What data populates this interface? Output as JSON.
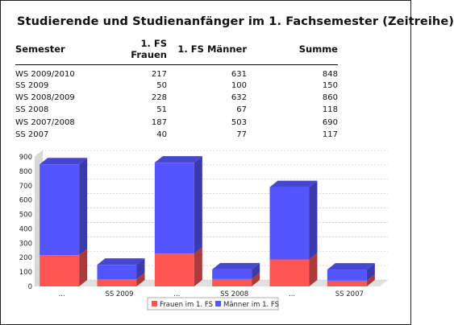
{
  "title": "Studierende und Studienanfänger im 1. Fachsemester (Zeitreihe)",
  "table": {
    "headers": [
      "Semester",
      "1. FS Frauen",
      "1. FS Männer",
      "Summe"
    ],
    "rows": [
      [
        "WS 2009/2010",
        "217",
        "631",
        "848"
      ],
      [
        "SS 2009",
        "50",
        "100",
        "150"
      ],
      [
        "WS 2008/2009",
        "228",
        "632",
        "860"
      ],
      [
        "SS 2008",
        "51",
        "67",
        "118"
      ],
      [
        "WS 2007/2008",
        "187",
        "503",
        "690"
      ],
      [
        "SS 2007",
        "40",
        "77",
        "117"
      ]
    ]
  },
  "chart_data": {
    "type": "bar",
    "stacked": true,
    "categories": [
      "...",
      "SS 2009",
      "...",
      "SS 2008",
      "...",
      "SS 2007"
    ],
    "series": [
      {
        "name": "Frauen im 1. FS",
        "color": "#ff5555",
        "values": [
          217,
          50,
          228,
          51,
          187,
          40
        ]
      },
      {
        "name": "Männer im 1. FS",
        "color": "#5555ff",
        "values": [
          631,
          100,
          632,
          67,
          503,
          77
        ]
      }
    ],
    "yticks": [
      0,
      100,
      200,
      300,
      400,
      500,
      600,
      700,
      800,
      900
    ],
    "ylim": [
      0,
      900
    ],
    "grid": true,
    "legend": "bottom"
  }
}
